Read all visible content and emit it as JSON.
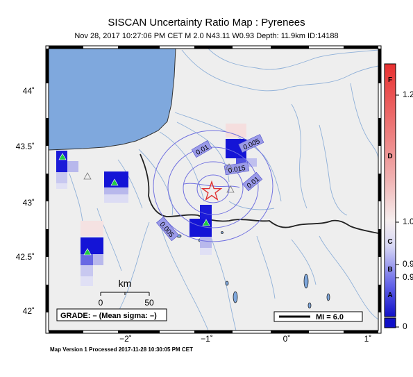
{
  "title": "SISCAN Uncertainty Ratio Map : Pyrenees",
  "subtitle": "Nov 28, 2017 10:27:06 PM CET   M 2.0   N43.11 W0.93   Depth: 11.9km   ID:14188",
  "footer": "Map Version 1 Processed 2017-11-28 10:30:05 PM CET",
  "map": {
    "lat_ticks": [
      "44˚",
      "43.5˚",
      "43˚",
      "42.5˚",
      "42˚"
    ],
    "lon_ticks": [
      "−2˚",
      "−1˚",
      "0˚",
      "1˚"
    ],
    "contour_labels": [
      "0.01",
      "0.005",
      "0.015",
      "0.01",
      "0.005"
    ],
    "scale_bar": {
      "unit": "km",
      "start": "0",
      "end": "50"
    },
    "grade_box": "GRADE: – (Mean sigma: –)",
    "mi_legend": "MI = 6.0",
    "epicenter": {
      "lat": 43.11,
      "lon": -0.93
    },
    "colors": {
      "water": "#7fa8dd",
      "land": "#eeeeee",
      "epicenter": "#e03030",
      "station": "#22cc44"
    }
  },
  "colorbar": {
    "letters": [
      "F",
      "D",
      "C",
      "B",
      "A"
    ],
    "ticks": [
      "1.2",
      "1.0",
      "0.9",
      "0.9",
      "0"
    ],
    "gradient": [
      "#e83030",
      "#f0b0b0",
      "#f5e8e8",
      "#d8d8f5",
      "#5050e8",
      "#1010c8"
    ]
  }
}
